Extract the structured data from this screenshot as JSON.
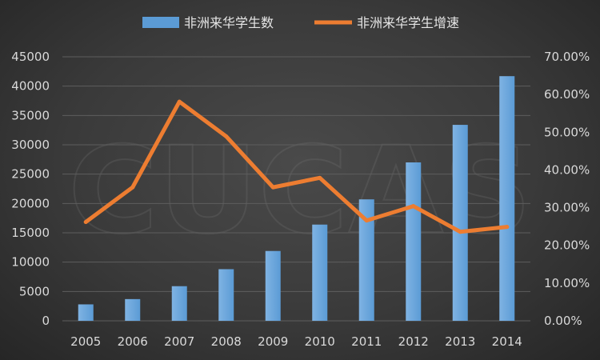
{
  "colors": {
    "bar": "#5b9bd5",
    "bar_light": "#7fb3e3",
    "line": "#ed7d31",
    "grid": "#5e5e5e",
    "text": "#d9d9d9"
  },
  "watermark": "CUCAS",
  "chart_data": {
    "type": "bar",
    "categories": [
      "2005",
      "2006",
      "2007",
      "2008",
      "2009",
      "2010",
      "2011",
      "2012",
      "2013",
      "2014"
    ],
    "series": [
      {
        "name": "非洲来华学生数",
        "type": "bar",
        "axis": "left",
        "values": [
          2800,
          3700,
          5900,
          8800,
          11900,
          16400,
          20700,
          27000,
          33400,
          41700
        ]
      },
      {
        "name": "非洲来华学生增速",
        "type": "line",
        "axis": "right",
        "values": [
          26.2,
          35.4,
          58.1,
          48.9,
          35.4,
          37.9,
          26.6,
          30.4,
          23.6,
          24.9
        ]
      }
    ],
    "y_left": {
      "min": 0,
      "max": 45000,
      "ticks": [
        "0",
        "5000",
        "10000",
        "15000",
        "20000",
        "25000",
        "30000",
        "35000",
        "40000",
        "45000"
      ]
    },
    "y_right": {
      "min": 0,
      "max": 70,
      "ticks": [
        "0.00%",
        "10.00%",
        "20.00%",
        "30.00%",
        "40.00%",
        "50.00%",
        "60.00%",
        "70.00%"
      ]
    },
    "legend_position": "top-center",
    "grid": true
  }
}
